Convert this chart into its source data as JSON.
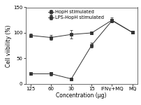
{
  "x_labels": [
    "125",
    "60",
    "30",
    "15",
    "IFNγ+MQ",
    "MQ"
  ],
  "series1_name": "HopH stimulated",
  "series1_y": [
    95,
    91,
    97,
    100,
    125,
    101
  ],
  "series1_yerr": [
    3,
    5,
    8,
    3,
    5,
    2
  ],
  "series2_name": "LPS-HopH stimulated",
  "series2_y": [
    20,
    20,
    10,
    76,
    124,
    101
  ],
  "series2_yerr": [
    2,
    3,
    2,
    5,
    4,
    2
  ],
  "ylabel": "Cell viibility (%)",
  "xlabel": "Concentration (μg)",
  "ylim": [
    0,
    150
  ],
  "yticks": [
    0,
    50,
    100,
    150
  ],
  "line_color": "#333333",
  "marker": "s",
  "label_fontsize": 5.5,
  "tick_fontsize": 5.0,
  "legend_fontsize": 4.8
}
